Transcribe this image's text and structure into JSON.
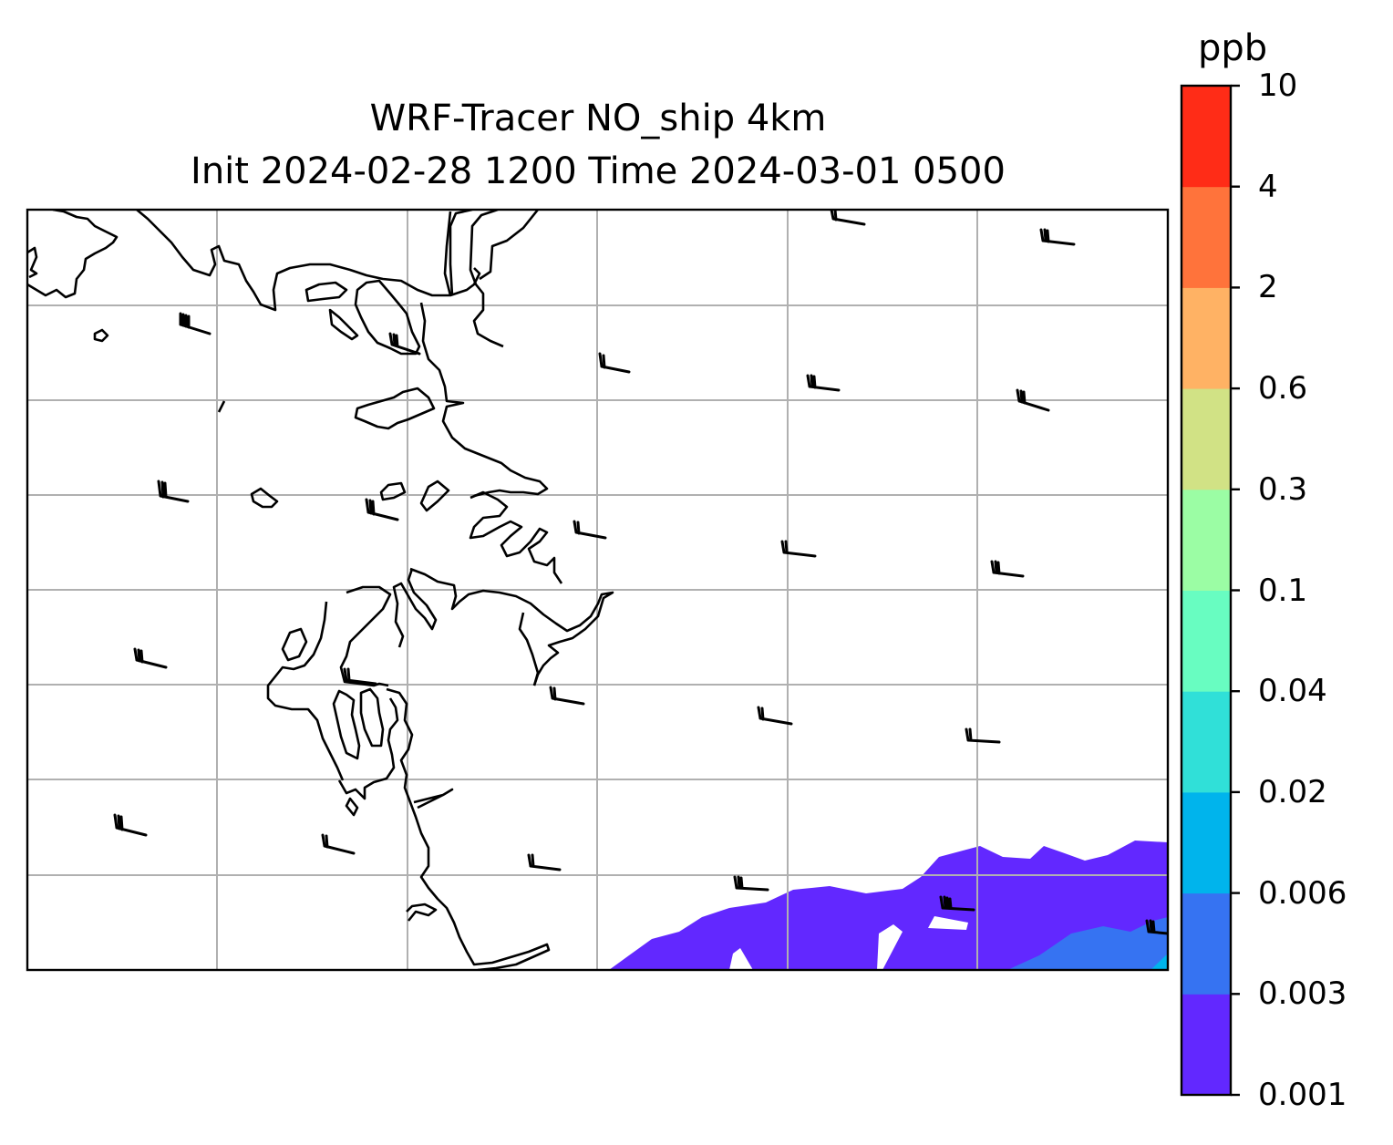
{
  "title": {
    "line1": "WRF-Tracer NO_ship 4km",
    "line2": "Init 2024-02-28 1200 Time 2024-03-01 0500"
  },
  "colorbar": {
    "unit": "ppb",
    "levels": [
      "0.001",
      "0.003",
      "0.006",
      "0.02",
      "0.04",
      "0.1",
      "0.3",
      "0.6",
      "2",
      "4",
      "10"
    ],
    "colors": [
      "#6228ff",
      "#3673f2",
      "#00b4ec",
      "#30e0d8",
      "#68fdc1",
      "#9bfda4",
      "#d1e285",
      "#ffb264",
      "#ff733b",
      "#ff2c17"
    ]
  },
  "map": {
    "gridlines": true,
    "gridline_color": "#b0b0b0",
    "coastline_color": "#000000",
    "wind_barbs": true
  }
}
